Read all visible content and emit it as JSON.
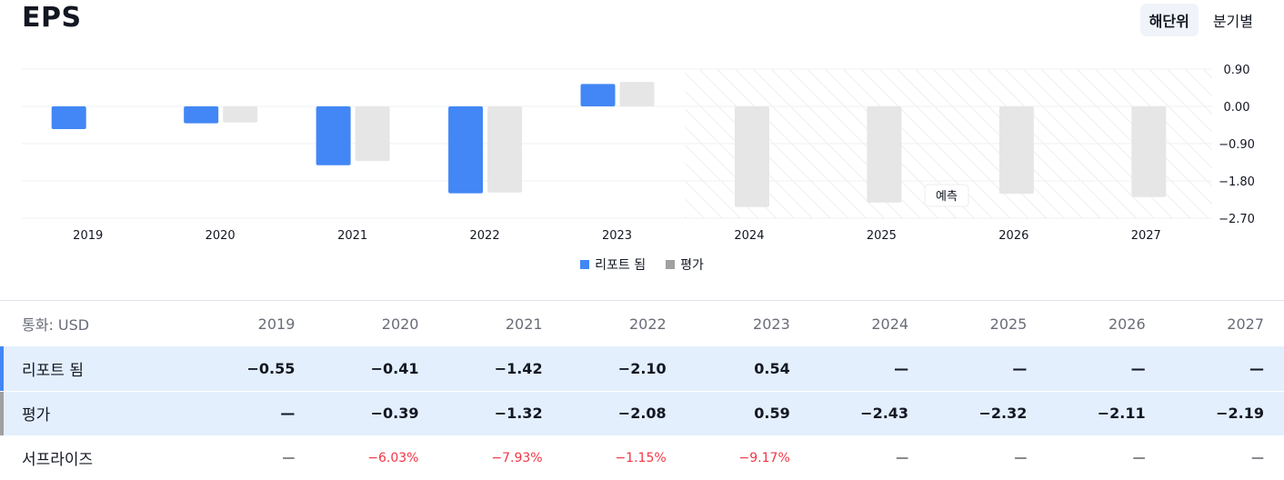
{
  "header": {
    "title": "EPS",
    "toggle": {
      "annual": "해단위",
      "quarterly": "분기별"
    }
  },
  "colors": {
    "reported": "#4287f5",
    "estimate": "#e6e6e6",
    "negative": "#f23645"
  },
  "chart_data": {
    "type": "bar",
    "categories": [
      "2019",
      "2020",
      "2021",
      "2022",
      "2023",
      "2024",
      "2025",
      "2026",
      "2027"
    ],
    "series": [
      {
        "name": "리포트 됨",
        "values": [
          -0.55,
          -0.41,
          -1.42,
          -2.1,
          0.54,
          null,
          null,
          null,
          null
        ]
      },
      {
        "name": "평가",
        "values": [
          null,
          -0.39,
          -1.32,
          -2.08,
          0.59,
          -2.43,
          -2.32,
          -2.11,
          -2.19
        ]
      }
    ],
    "yticks": [
      "0.90",
      "0.00",
      "−0.90",
      "−1.80",
      "−2.70"
    ],
    "ylim": [
      -2.7,
      0.9
    ],
    "forecast_label": "예측",
    "forecast_from": "2024"
  },
  "legend": {
    "reported": "리포트 됨",
    "estimate": "평가"
  },
  "table": {
    "currency_label": "통화: USD",
    "years": [
      "2019",
      "2020",
      "2021",
      "2022",
      "2023",
      "2024",
      "2025",
      "2026",
      "2027"
    ],
    "rows": [
      {
        "label": "리포트 됨",
        "values": [
          "−0.55",
          "−0.41",
          "−1.42",
          "−2.10",
          "0.54",
          "—",
          "—",
          "—",
          "—"
        ]
      },
      {
        "label": "평가",
        "values": [
          "—",
          "−0.39",
          "−1.32",
          "−2.08",
          "0.59",
          "−2.43",
          "−2.32",
          "−2.11",
          "−2.19"
        ]
      },
      {
        "label": "서프라이즈",
        "values": [
          "—",
          "−6.03%",
          "−7.93%",
          "−1.15%",
          "−9.17%",
          "—",
          "—",
          "—",
          "—"
        ]
      }
    ]
  }
}
